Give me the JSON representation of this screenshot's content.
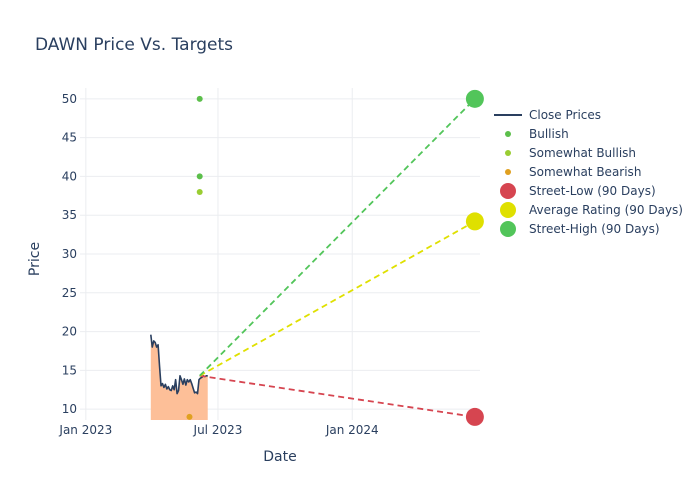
{
  "chart_data": {
    "type": "line",
    "title": "DAWN Price Vs. Targets",
    "xlabel": "Date",
    "ylabel": "Price",
    "ylim": [
      8.6,
      51.4
    ],
    "xlim": [
      "2022-12-24",
      "2024-06-24"
    ],
    "x_ticks": [
      {
        "date": "2023-01-01",
        "label": "Jan 2023"
      },
      {
        "date": "2023-07-01",
        "label": "Jul 2023"
      },
      {
        "date": "2024-01-01",
        "label": "Jan 2024"
      }
    ],
    "y_ticks": [
      10,
      15,
      20,
      25,
      30,
      35,
      40,
      45,
      50
    ],
    "grid": true,
    "legend_position": "right",
    "colors": {
      "close": "#2a3f5f",
      "area_fill": "#fdbf98",
      "bullish": "#5cbf4b",
      "somewhat_bullish": "#9acd32",
      "somewhat_bearish": "#e0a020",
      "street_low": "#d64550",
      "average": "#dfe000",
      "street_high": "#52c55a",
      "title": "#2a3f5f",
      "grid": "#ebedf0"
    },
    "close_prices": {
      "name": "Close Prices",
      "x": [
        "2023-03-31",
        "2023-04-02",
        "2023-04-04",
        "2023-04-06",
        "2023-04-08",
        "2023-04-10",
        "2023-04-12",
        "2023-04-14",
        "2023-04-16",
        "2023-04-18",
        "2023-04-20",
        "2023-04-22",
        "2023-04-24",
        "2023-04-26",
        "2023-04-28",
        "2023-04-30",
        "2023-05-02",
        "2023-05-04",
        "2023-05-06",
        "2023-05-08",
        "2023-05-10",
        "2023-05-12",
        "2023-05-14",
        "2023-05-16",
        "2023-05-18",
        "2023-05-20",
        "2023-05-22",
        "2023-05-24",
        "2023-05-26",
        "2023-05-28",
        "2023-05-30",
        "2023-06-01",
        "2023-06-03",
        "2023-06-05",
        "2023-06-07",
        "2023-06-09",
        "2023-06-11",
        "2023-06-13",
        "2023-06-15",
        "2023-06-17"
      ],
      "y": [
        19.6,
        18.0,
        18.8,
        18.6,
        18.0,
        18.3,
        15.5,
        13.0,
        13.3,
        12.8,
        13.2,
        12.6,
        12.9,
        12.5,
        12.4,
        13.0,
        12.5,
        13.8,
        12.0,
        12.4,
        14.3,
        13.8,
        13.2,
        13.9,
        13.1,
        13.8,
        13.5,
        13.8,
        13.3,
        12.7,
        12.1,
        12.2,
        12.0,
        13.8,
        14.0,
        14.1,
        14.3,
        14.2,
        14.3,
        14.3
      ]
    },
    "ratings": [
      {
        "name": "Bullish",
        "points": [
          {
            "x": "2023-06-06",
            "y": 50
          },
          {
            "x": "2023-06-06",
            "y": 40
          }
        ]
      },
      {
        "name": "Somewhat Bullish",
        "points": [
          {
            "x": "2023-06-06",
            "y": 38
          }
        ]
      },
      {
        "name": "Somewhat Bearish",
        "points": [
          {
            "x": "2023-05-23",
            "y": 9
          }
        ]
      }
    ],
    "targets": {
      "start": {
        "x": "2023-06-06",
        "y": 14.3
      },
      "end_date": "2024-06-17",
      "street_low": {
        "name": "Street-Low (90 Days)",
        "value": 9
      },
      "average": {
        "name": "Average Rating (90 Days)",
        "value": 34.2
      },
      "street_high": {
        "name": "Street-High (90 Days)",
        "value": 50
      }
    }
  }
}
